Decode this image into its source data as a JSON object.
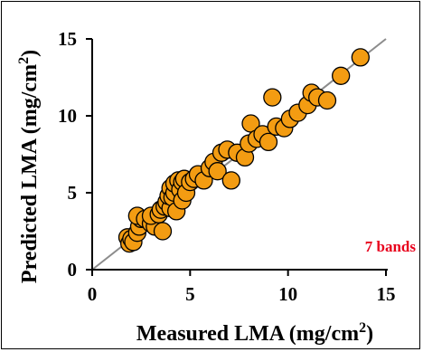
{
  "chart_data": {
    "type": "scatter",
    "xlabel_main": "Measured LMA (mg/cm",
    "xlabel_sup": "2",
    "xlabel_end": ")",
    "ylabel_main": "Predicted LMA (mg/cm",
    "ylabel_sup": "2",
    "ylabel_end": ")",
    "xlim": [
      0,
      15
    ],
    "ylim": [
      0,
      15
    ],
    "xticks": [
      "0",
      "5",
      "10",
      "15"
    ],
    "yticks": [
      "0",
      "5",
      "10",
      "15"
    ],
    "annotation": "7 bands",
    "annotation_color": "#e8001c",
    "marker_color": "#f39c12",
    "marker_edge": "#000000",
    "line_color": "#8c8c8c",
    "one_to_one_line": true,
    "grid": false,
    "points": [
      {
        "x": 1.8,
        "y": 2.1
      },
      {
        "x": 1.9,
        "y": 1.7
      },
      {
        "x": 2.0,
        "y": 2.0
      },
      {
        "x": 2.1,
        "y": 1.8
      },
      {
        "x": 2.3,
        "y": 2.4
      },
      {
        "x": 2.4,
        "y": 2.8
      },
      {
        "x": 2.5,
        "y": 3.3
      },
      {
        "x": 2.3,
        "y": 3.5
      },
      {
        "x": 2.7,
        "y": 3.3
      },
      {
        "x": 3.0,
        "y": 3.0
      },
      {
        "x": 3.2,
        "y": 2.8
      },
      {
        "x": 3.0,
        "y": 3.5
      },
      {
        "x": 3.4,
        "y": 3.6
      },
      {
        "x": 3.5,
        "y": 3.9
      },
      {
        "x": 3.7,
        "y": 4.1
      },
      {
        "x": 3.6,
        "y": 2.5
      },
      {
        "x": 3.8,
        "y": 4.4
      },
      {
        "x": 4.0,
        "y": 4.0
      },
      {
        "x": 3.9,
        "y": 4.8
      },
      {
        "x": 4.0,
        "y": 5.3
      },
      {
        "x": 4.1,
        "y": 4.7
      },
      {
        "x": 4.2,
        "y": 5.0
      },
      {
        "x": 4.2,
        "y": 5.6
      },
      {
        "x": 4.3,
        "y": 3.8
      },
      {
        "x": 4.4,
        "y": 5.8
      },
      {
        "x": 4.5,
        "y": 5.2
      },
      {
        "x": 4.6,
        "y": 4.5
      },
      {
        "x": 4.6,
        "y": 5.7
      },
      {
        "x": 4.7,
        "y": 5.9
      },
      {
        "x": 4.8,
        "y": 5.0
      },
      {
        "x": 5.0,
        "y": 5.7
      },
      {
        "x": 5.2,
        "y": 5.9
      },
      {
        "x": 5.4,
        "y": 6.2
      },
      {
        "x": 5.7,
        "y": 5.8
      },
      {
        "x": 6.0,
        "y": 6.6
      },
      {
        "x": 6.2,
        "y": 7.0
      },
      {
        "x": 6.4,
        "y": 6.4
      },
      {
        "x": 6.6,
        "y": 7.6
      },
      {
        "x": 6.9,
        "y": 7.8
      },
      {
        "x": 7.1,
        "y": 5.8
      },
      {
        "x": 7.4,
        "y": 7.6
      },
      {
        "x": 7.8,
        "y": 7.3
      },
      {
        "x": 8.0,
        "y": 8.2
      },
      {
        "x": 8.1,
        "y": 9.5
      },
      {
        "x": 8.4,
        "y": 8.5
      },
      {
        "x": 8.7,
        "y": 8.8
      },
      {
        "x": 9.0,
        "y": 8.3
      },
      {
        "x": 9.2,
        "y": 11.2
      },
      {
        "x": 9.4,
        "y": 9.3
      },
      {
        "x": 9.8,
        "y": 9.2
      },
      {
        "x": 10.1,
        "y": 9.8
      },
      {
        "x": 10.5,
        "y": 10.2
      },
      {
        "x": 11.0,
        "y": 10.7
      },
      {
        "x": 11.2,
        "y": 11.5
      },
      {
        "x": 11.5,
        "y": 11.2
      },
      {
        "x": 12.0,
        "y": 11.0
      },
      {
        "x": 12.7,
        "y": 12.6
      },
      {
        "x": 13.7,
        "y": 13.8
      }
    ]
  }
}
